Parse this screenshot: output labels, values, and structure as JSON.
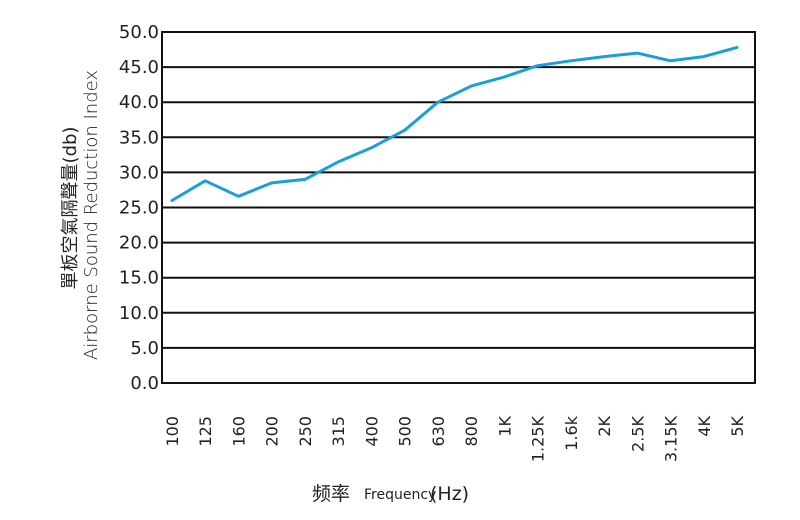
{
  "chart_data": {
    "type": "line",
    "xlabel_zh": "频率",
    "xlabel_en": "Frequency",
    "xlabel_unit": "(Hz)",
    "ylabel_zh": "單板空氣隔聲量(db)",
    "ylabel_en": "Airborne Sound Reduction Index",
    "ylim": [
      0,
      50
    ],
    "yticks": [
      "0.0",
      "5.0",
      "10.0",
      "15.0",
      "20.0",
      "25.0",
      "30.0",
      "35.0",
      "40.0",
      "45.0",
      "50.0"
    ],
    "categories": [
      "100",
      "125",
      "160",
      "200",
      "250",
      "315",
      "400",
      "500",
      "630",
      "800",
      "1K",
      "1.25K",
      "1.6k",
      "2K",
      "2.5K",
      "3.15K",
      "4K",
      "5K"
    ],
    "grid": true,
    "series": [
      {
        "color": "#1a9fdc",
        "values": [
          26.0,
          28.8,
          26.6,
          28.5,
          29.0,
          31.5,
          33.5,
          36.0,
          40.0,
          42.3,
          43.6,
          45.2,
          45.9,
          46.5,
          47.0,
          45.9,
          46.5,
          47.8
        ]
      }
    ]
  }
}
